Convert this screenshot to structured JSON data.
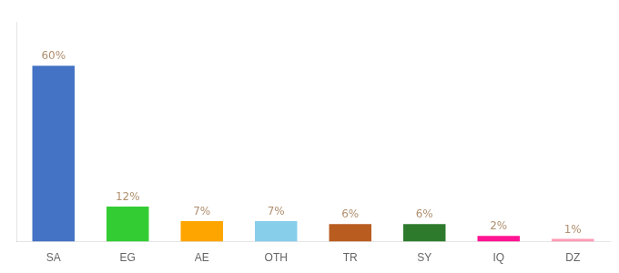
{
  "chart_data": {
    "type": "bar",
    "categories": [
      "SA",
      "EG",
      "AE",
      "OTH",
      "TR",
      "SY",
      "IQ",
      "DZ"
    ],
    "values": [
      60,
      12,
      7,
      7,
      6,
      6,
      2,
      1
    ],
    "value_labels": [
      "60%",
      "12%",
      "7%",
      "7%",
      "6%",
      "6%",
      "2%",
      "1%"
    ],
    "colors": [
      "#4472c4",
      "#33cc33",
      "#ffa500",
      "#87ceeb",
      "#b85c20",
      "#2d7a2d",
      "#ff1493",
      "#ff9ab5"
    ],
    "ylim": [
      0,
      75
    ],
    "grid": false,
    "data_labels": true,
    "tick_labels": "x"
  }
}
